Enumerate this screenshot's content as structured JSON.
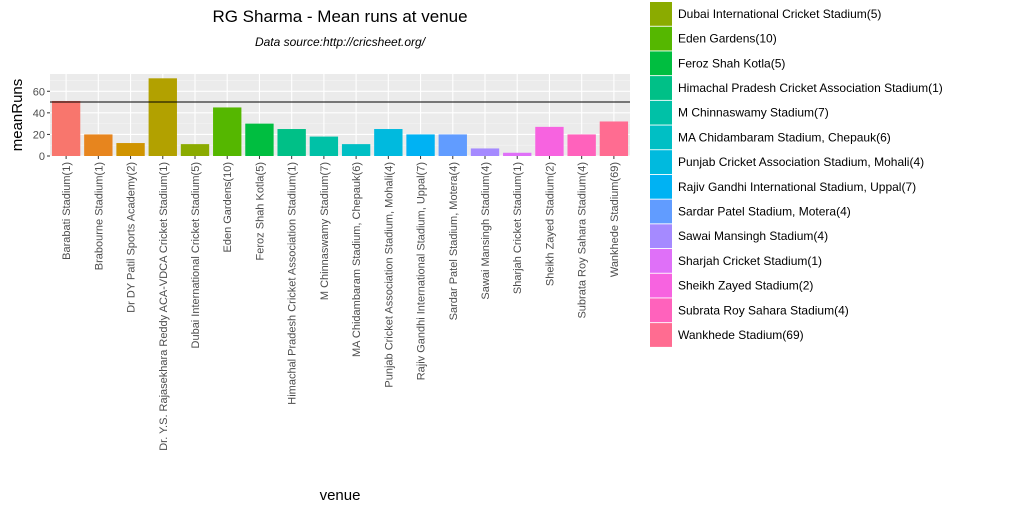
{
  "chart_data": {
    "type": "bar",
    "title": "RG Sharma - Mean runs at venue",
    "subtitle": "Data source:http://cricsheet.org/",
    "xlabel": "venue",
    "ylabel": "meanRuns",
    "ylim": [
      0,
      76
    ],
    "yticks": [
      0,
      20,
      40,
      60
    ],
    "reference_line": 50,
    "grid": true,
    "legend_position": "right",
    "categories": [
      "Barabati Stadium(1)",
      "Brabourne Stadium(1)",
      "Dr DY Patil Sports Academy(2)",
      "Dr. Y.S. Rajasekhara Reddy ACA-VDCA Cricket Stadium(1)",
      "Dubai International Cricket Stadium(5)",
      "Eden Gardens(10)",
      "Feroz Shah Kotla(5)",
      "Himachal Pradesh Cricket Association Stadium(1)",
      "M Chinnaswamy Stadium(7)",
      "MA Chidambaram Stadium, Chepauk(6)",
      "Punjab Cricket Association Stadium, Mohali(4)",
      "Rajiv Gandhi International Stadium, Uppal(7)",
      "Sardar Patel Stadium, Motera(4)",
      "Sawai Mansingh Stadium(4)",
      "Sharjah Cricket Stadium(1)",
      "Sheikh Zayed Stadium(2)",
      "Subrata Roy Sahara Stadium(4)",
      "Wankhede Stadium(69)"
    ],
    "values": [
      51,
      20,
      12,
      72,
      11,
      45,
      30,
      25,
      18,
      11,
      25,
      20,
      20,
      7,
      3,
      27,
      20,
      32
    ],
    "colors": [
      "#F8766D",
      "#E7851E",
      "#D09400",
      "#B2A100",
      "#8BAB00",
      "#55B700",
      "#00BE40",
      "#00C087",
      "#00C1A7",
      "#00BFC4",
      "#00BADE",
      "#00B2F3",
      "#619CFF",
      "#A58AFF",
      "#DF70F8",
      "#F763E0",
      "#FF62BC",
      "#FF6C91"
    ],
    "legend": [
      "Dubai International Cricket Stadium(5)",
      "Eden Gardens(10)",
      "Feroz Shah Kotla(5)",
      "Himachal Pradesh Cricket Association Stadium(1)",
      "M Chinnaswamy Stadium(7)",
      "MA Chidambaram Stadium, Chepauk(6)",
      "Punjab Cricket Association Stadium, Mohali(4)",
      "Rajiv Gandhi International Stadium, Uppal(7)",
      "Sardar Patel Stadium, Motera(4)",
      "Sawai Mansingh Stadium(4)",
      "Sharjah Cricket Stadium(1)",
      "Sheikh Zayed Stadium(2)",
      "Subrata Roy Sahara Stadium(4)",
      "Wankhede Stadium(69)"
    ],
    "legend_colors": [
      "#8BAB00",
      "#55B700",
      "#00BE40",
      "#00C087",
      "#00C1A7",
      "#00BFC4",
      "#00BADE",
      "#00B2F3",
      "#619CFF",
      "#A58AFF",
      "#DF70F8",
      "#F763E0",
      "#FF62BC",
      "#FF6C91"
    ]
  }
}
